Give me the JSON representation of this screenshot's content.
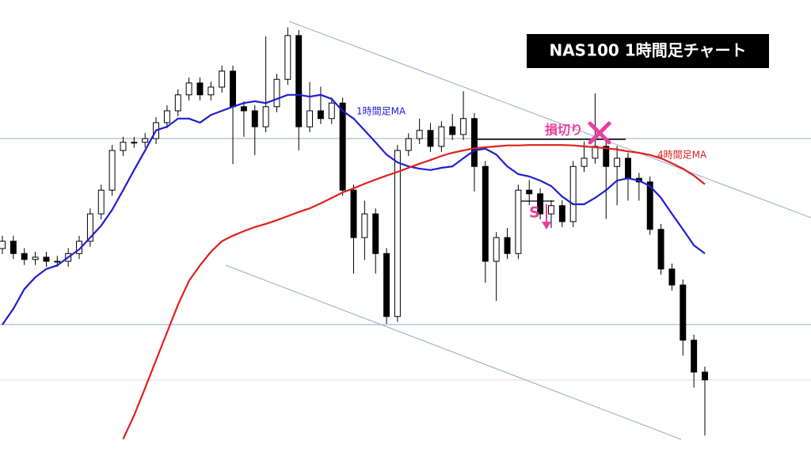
{
  "chart_data": {
    "type": "candlestick",
    "title": "NAS100  1時間足チャート",
    "ylim": [
      0,
      100
    ],
    "up_color": "#ffffff",
    "down_color": "#000000",
    "open": [
      45.5,
      47.1,
      44.4,
      43.1,
      43.6,
      42.7,
      42.7,
      44.4,
      47.1,
      53.1,
      58.3,
      67.0,
      68.8,
      68.8,
      69.6,
      73.1,
      75.7,
      79.2,
      81.8,
      79.2,
      80.9,
      84.4,
      76.6,
      75.7,
      72.2,
      76.6,
      82.6,
      92.2,
      72.2,
      75.7,
      74.0,
      77.4,
      58.3,
      47.9,
      53.1,
      44.4,
      30.6,
      67.0,
      69.6,
      71.4,
      67.9,
      72.2,
      70.5,
      74.0,
      63.5,
      42.7,
      47.9,
      44.4,
      58.3,
      57.5,
      53.1,
      54.9,
      51.4,
      63.5,
      65.3,
      67.9,
      63.5,
      65.3,
      60.9,
      60.1,
      49.7,
      41.0,
      37.5,
      25.4,
      18.4
    ],
    "high": [
      48.3,
      48.3,
      45.6,
      44.8,
      44.8,
      43.9,
      45.6,
      48.3,
      54.3,
      59.5,
      68.2,
      70.0,
      70.0,
      70.8,
      74.3,
      76.9,
      80.4,
      83.0,
      83.0,
      82.1,
      85.6,
      85.6,
      77.8,
      76.9,
      92.0,
      83.8,
      94.0,
      93.4,
      82.0,
      81.0,
      78.6,
      78.6,
      59.5,
      56.0,
      54.3,
      45.6,
      68.2,
      70.8,
      74.0,
      73.0,
      73.4,
      75.0,
      80.0,
      75.2,
      64.7,
      49.1,
      50.0,
      59.5,
      60.5,
      58.7,
      56.1,
      56.1,
      64.7,
      69.0,
      79.5,
      70.0,
      68.0,
      66.5,
      62.1,
      61.3,
      50.9,
      42.2,
      38.7,
      26.6,
      19.6
    ],
    "low": [
      44.3,
      43.2,
      41.9,
      41.9,
      41.5,
      41.5,
      41.5,
      43.2,
      45.9,
      51.9,
      57.1,
      65.8,
      67.6,
      67.6,
      68.4,
      71.9,
      74.5,
      78.0,
      78.0,
      78.0,
      79.7,
      64.0,
      70.0,
      66.0,
      71.0,
      75.4,
      81.4,
      67.0,
      71.0,
      72.8,
      72.8,
      57.1,
      40.0,
      43.0,
      40.0,
      29.0,
      29.4,
      65.8,
      68.4,
      66.7,
      66.7,
      69.3,
      69.3,
      58.0,
      38.0,
      34.0,
      43.2,
      43.2,
      55.0,
      51.9,
      50.0,
      50.2,
      50.2,
      62.3,
      64.1,
      52.0,
      55.0,
      56.0,
      56.0,
      48.5,
      39.8,
      36.3,
      22.0,
      15.0,
      4.5
    ],
    "close": [
      47.1,
      44.4,
      43.1,
      43.6,
      42.7,
      42.7,
      44.4,
      47.1,
      53.1,
      58.3,
      67.0,
      68.8,
      68.8,
      69.6,
      73.1,
      75.7,
      79.2,
      81.8,
      79.2,
      80.9,
      84.4,
      76.6,
      75.7,
      72.2,
      76.6,
      82.6,
      92.2,
      72.2,
      75.7,
      74.0,
      77.4,
      58.3,
      47.9,
      53.1,
      44.4,
      30.6,
      67.0,
      69.6,
      71.4,
      67.9,
      72.2,
      70.5,
      74.0,
      63.5,
      42.7,
      47.9,
      44.4,
      58.3,
      57.5,
      53.1,
      54.9,
      51.4,
      63.5,
      65.3,
      67.9,
      63.5,
      65.3,
      60.9,
      60.1,
      49.7,
      41.0,
      37.5,
      25.4,
      18.4,
      16.7
    ],
    "series": [
      {
        "name": "1時間足MA",
        "color": "#1f1fd0",
        "values": [
          28.8,
          32.3,
          36.6,
          39.2,
          41.0,
          41.8,
          43.6,
          45.3,
          47.9,
          50.5,
          54.0,
          58.3,
          62.7,
          67.0,
          71.4,
          72.2,
          74.0,
          74.0,
          73.1,
          74.8,
          75.7,
          76.6,
          77.4,
          77.8,
          77.4,
          78.3,
          79.2,
          79.2,
          78.8,
          79.2,
          78.3,
          75.7,
          74.0,
          71.4,
          68.8,
          66.1,
          64.4,
          63.5,
          63.0,
          62.7,
          63.2,
          63.5,
          65.3,
          67.0,
          67.4,
          66.1,
          63.5,
          61.8,
          61.3,
          60.4,
          59.2,
          56.9,
          55.2,
          55.2,
          56.6,
          58.3,
          60.4,
          60.9,
          60.4,
          59.2,
          56.6,
          53.1,
          49.7,
          46.2,
          44.4
        ]
      },
      {
        "name": "4時間足MA",
        "color": "#e0201c",
        "values": [
          null,
          null,
          null,
          null,
          null,
          null,
          null,
          null,
          null,
          null,
          null,
          3.7,
          8.9,
          14.9,
          21.0,
          27.1,
          33.2,
          38.4,
          41.8,
          44.8,
          47.1,
          48.3,
          49.3,
          50.2,
          50.9,
          51.7,
          52.6,
          53.5,
          54.3,
          55.4,
          56.6,
          57.8,
          58.7,
          59.7,
          60.6,
          61.5,
          62.3,
          63.2,
          64.1,
          64.9,
          65.8,
          66.5,
          67.0,
          67.5,
          67.7,
          67.9,
          68.1,
          68.1,
          68.2,
          68.2,
          68.2,
          68.2,
          68.1,
          67.9,
          67.7,
          67.5,
          67.2,
          66.8,
          66.5,
          66.0,
          65.3,
          64.2,
          63.0,
          61.5,
          59.6
        ]
      }
    ],
    "stop_loss_label": "損切り",
    "signal_label": "S"
  }
}
